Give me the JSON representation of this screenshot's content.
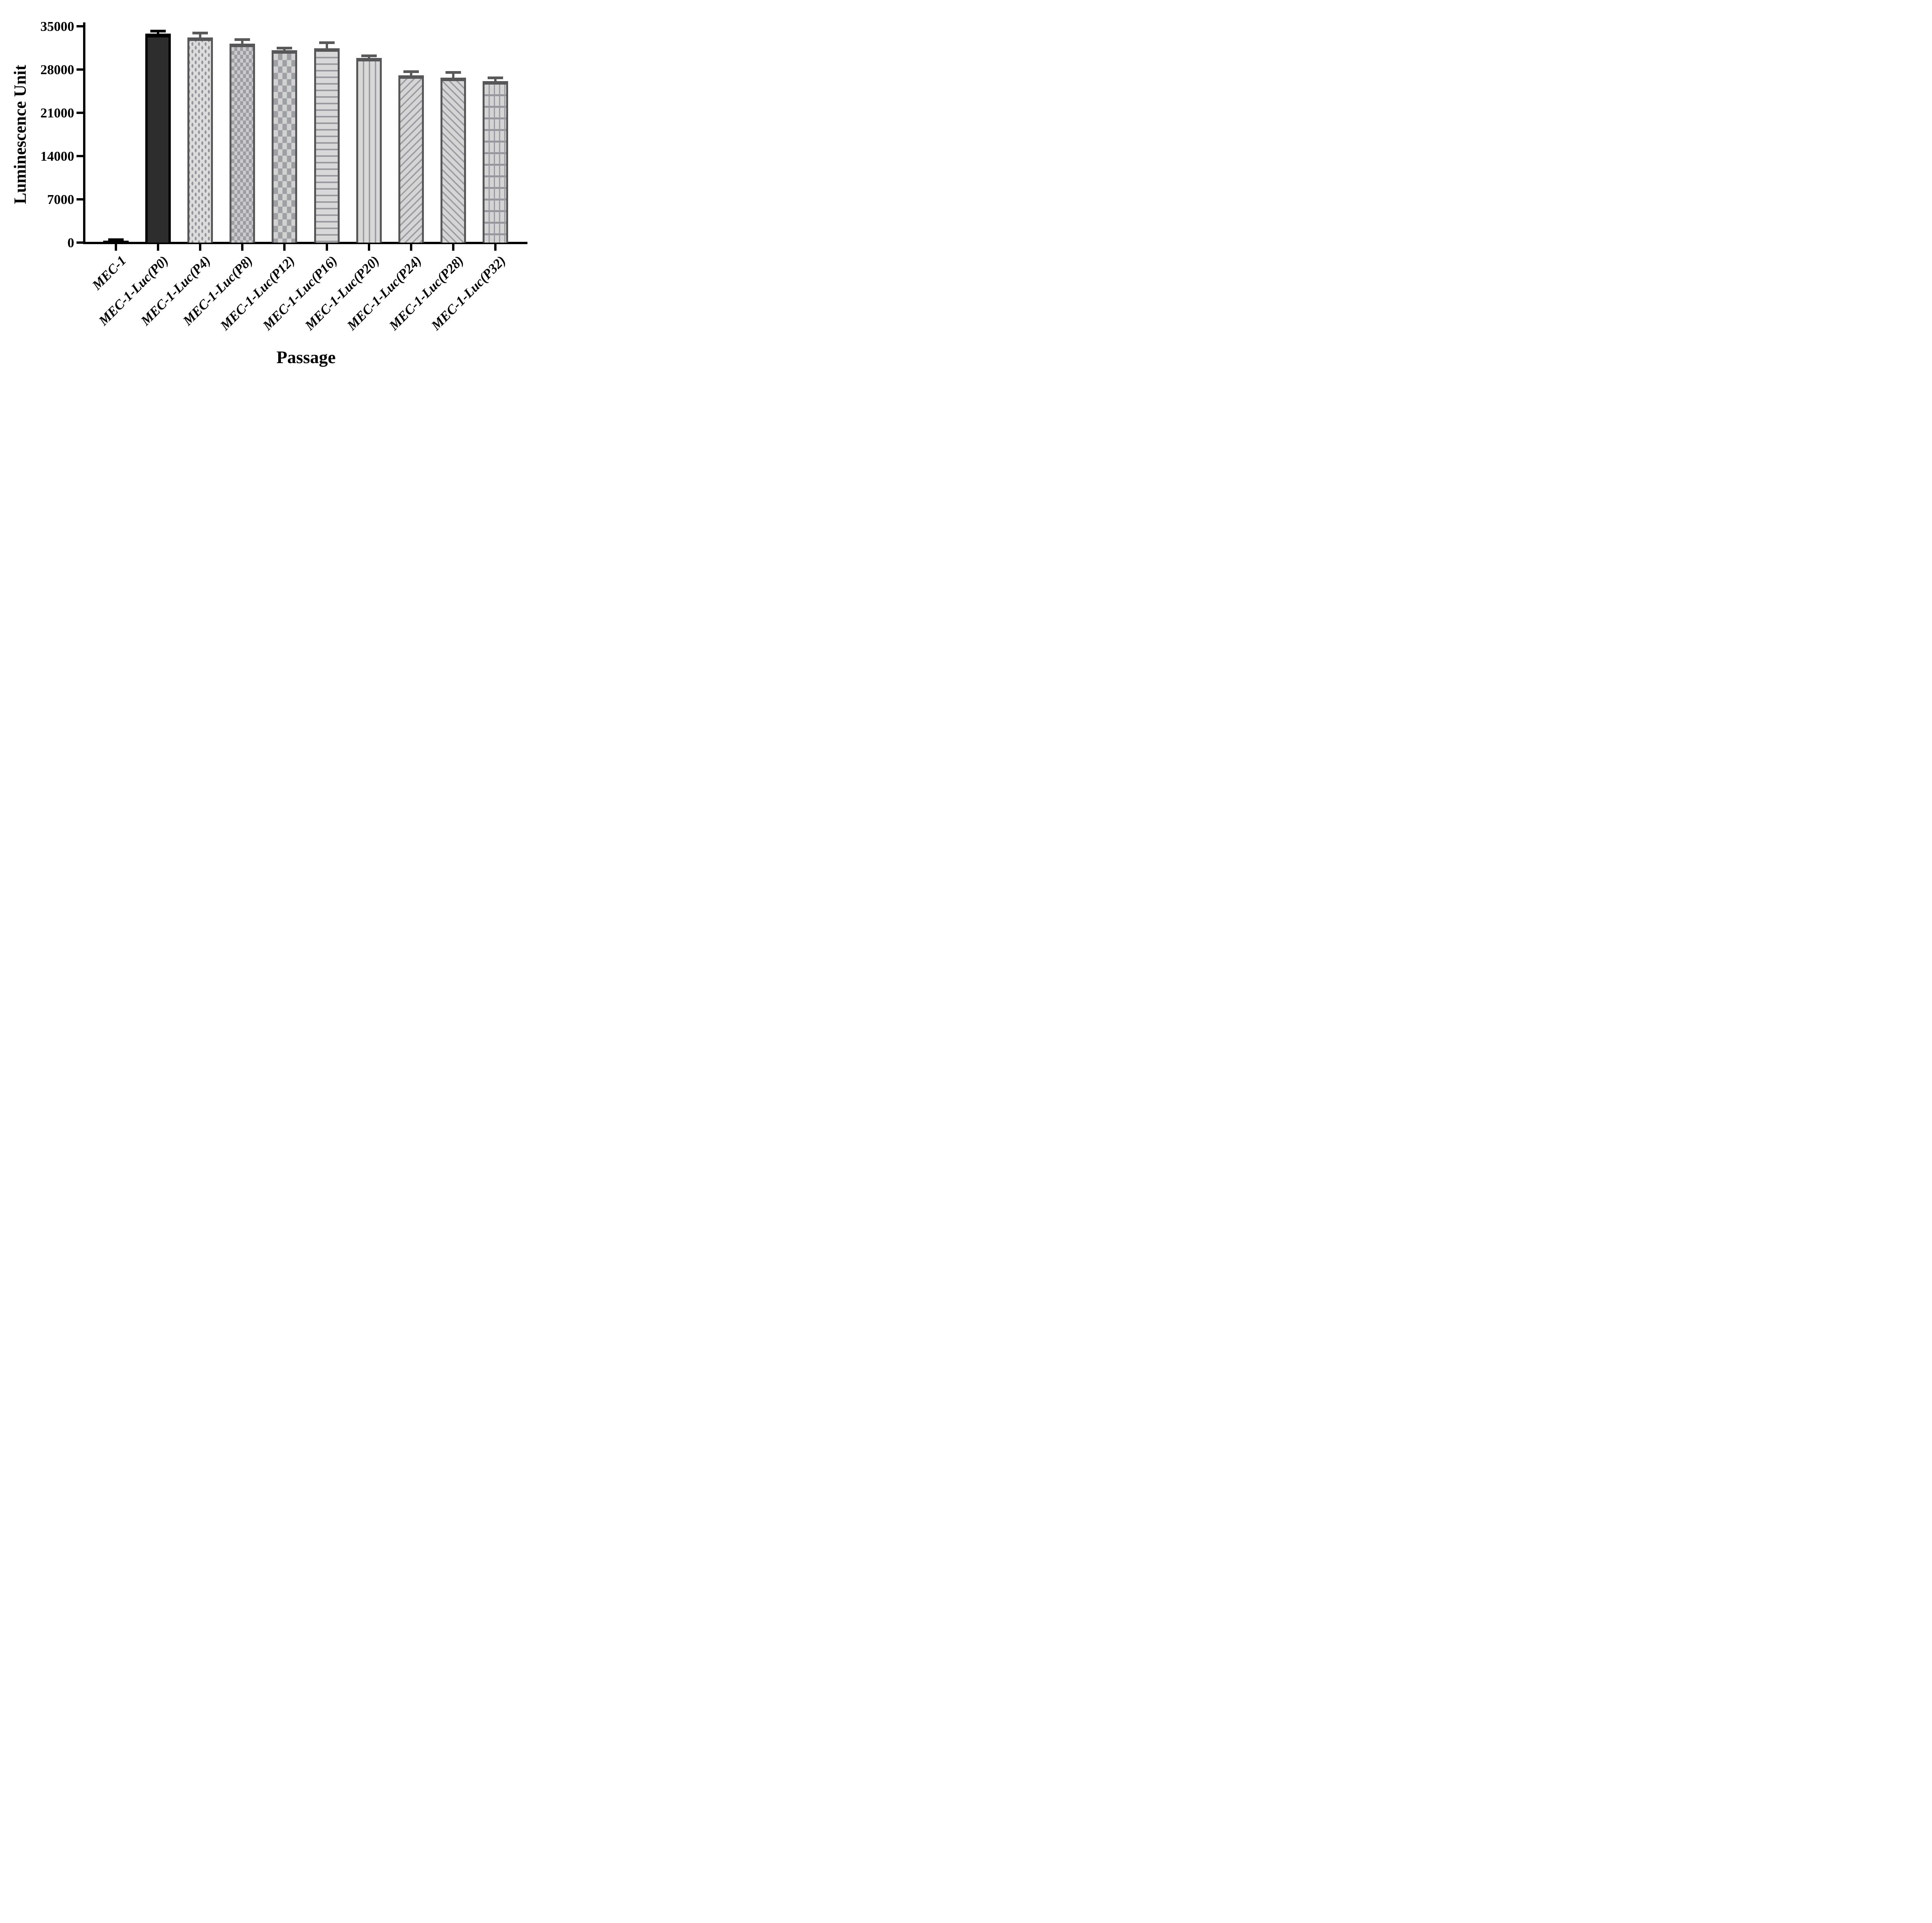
{
  "chart_data": {
    "type": "bar",
    "title": "",
    "xlabel": "Passage",
    "ylabel": "Luminescence Unit",
    "ylim": [
      0,
      35000
    ],
    "yticks": [
      0,
      7000,
      14000,
      21000,
      28000,
      35000
    ],
    "ytick_labels": [
      "0",
      "7000",
      "14000",
      "21000",
      "28000",
      "35000"
    ],
    "grid": false,
    "legend_position": "none",
    "categories": [
      "MEC-1",
      "MEC-1-Luc(P0)",
      "MEC-1-Luc(P4)",
      "MEC-1-Luc(P8)",
      "MEC-1-Luc(P12)",
      "MEC-1-Luc(P16)",
      "MEC-1-Luc(P20)",
      "MEC-1-Luc(P24)",
      "MEC-1-Luc(P28)",
      "MEC-1-Luc(P32)"
    ],
    "series": [
      {
        "name": "Luminescence Unit",
        "values": [
          300,
          33800,
          33200,
          32200,
          31150,
          31450,
          29900,
          27050,
          26700,
          26100
        ],
        "errors_plus": [
          150,
          400,
          700,
          600,
          300,
          850,
          300,
          550,
          800,
          550
        ]
      }
    ],
    "bar_patterns": [
      "solid-black",
      "solid-dark",
      "dots",
      "checker-small",
      "checker-large",
      "hlines",
      "vlines",
      "diag-up",
      "diag-down",
      "grid"
    ],
    "colors": {
      "axis": "#000000",
      "dark_bar_fill": "#2d2d2d",
      "dark_bar_border": "#000000",
      "light_bar_fill": "#d8d8d8",
      "pattern_mark": "#9a9a9e",
      "light_bar_border": "#57575a",
      "error_bar_dark": "#000000",
      "error_bar_gray": "#595959"
    }
  }
}
